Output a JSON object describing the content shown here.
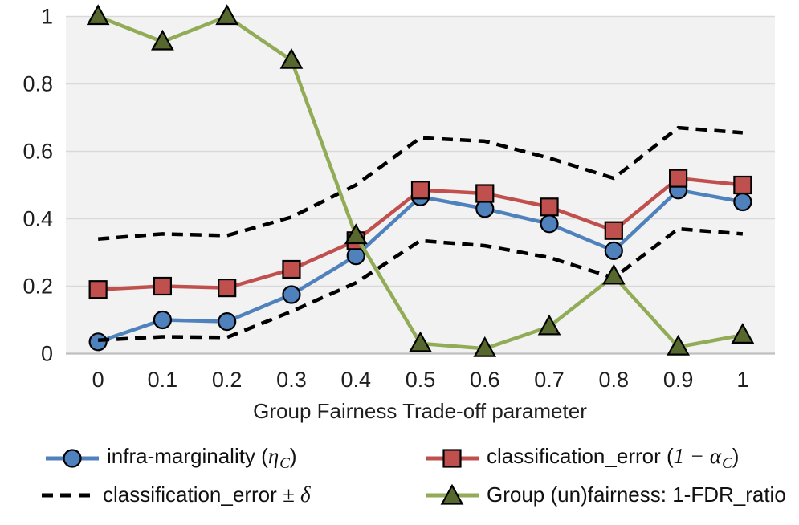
{
  "chart_data": {
    "type": "line",
    "title": "",
    "xlabel": "Group Fairness Trade-off parameter",
    "ylabel": "",
    "x": [
      0,
      0.1,
      0.2,
      0.3,
      0.4,
      0.5,
      0.6,
      0.7,
      0.8,
      0.9,
      1
    ],
    "x_tick_labels": [
      "0",
      "0.1",
      "0.2",
      "0.3",
      "0.4",
      "0.5",
      "0.6",
      "0.7",
      "0.8",
      "0.9",
      "1"
    ],
    "y_ticks": [
      0,
      0.2,
      0.4,
      0.6,
      0.8,
      1
    ],
    "y_tick_labels": [
      "0",
      "0.2",
      "0.4",
      "0.6",
      "0.8",
      "1"
    ],
    "ylim": [
      0,
      1
    ],
    "grid": "horizontal-only",
    "legend_position": "bottom",
    "plot_bg": "#F2F2F2",
    "gridline_color": "#D9D9D9",
    "axis_line_color": "#BFBFBF",
    "series": [
      {
        "id": "infra-marginality",
        "name": "infra-marginality (ηC)",
        "color": "#4F81BD",
        "marker": "circle",
        "marker_fill": "#4F81BD",
        "dash": false,
        "values": [
          0.035,
          0.1,
          0.095,
          0.175,
          0.29,
          0.465,
          0.43,
          0.385,
          0.305,
          0.485,
          0.45
        ]
      },
      {
        "id": "classification-error",
        "name": "classification_error (1 − αC)",
        "color": "#C0504D",
        "marker": "square",
        "marker_fill": "#C0504D",
        "dash": false,
        "values": [
          0.19,
          0.2,
          0.195,
          0.25,
          0.335,
          0.485,
          0.475,
          0.435,
          0.365,
          0.52,
          0.5
        ]
      },
      {
        "id": "classification-error-plus-delta",
        "name": "classification_error + δ",
        "color": "#000000",
        "marker": "none",
        "marker_fill": "none",
        "dash": true,
        "values": [
          0.34,
          0.355,
          0.35,
          0.405,
          0.5,
          0.64,
          0.63,
          0.58,
          0.52,
          0.67,
          0.655
        ]
      },
      {
        "id": "classification-error-minus-delta",
        "name": "classification_error − δ",
        "color": "#000000",
        "marker": "none",
        "marker_fill": "none",
        "dash": true,
        "values": [
          0.04,
          0.05,
          0.048,
          0.125,
          0.21,
          0.335,
          0.32,
          0.285,
          0.225,
          0.37,
          0.355
        ]
      },
      {
        "id": "group-unfairness",
        "name": "Group (un)fairness: 1-FDR_ratio",
        "color": "#92AB56",
        "marker": "triangle",
        "marker_fill": "#56682D",
        "dash": false,
        "values": [
          1.0,
          0.925,
          1.0,
          0.87,
          0.35,
          0.03,
          0.015,
          0.08,
          0.23,
          0.02,
          0.055
        ]
      }
    ],
    "legend": [
      {
        "name": "infra-marginality",
        "swatch": "circle",
        "color": "#4F81BD",
        "fill": "#4F81BD",
        "parts": [
          {
            "t": "infra-marginality ("
          },
          {
            "t": "η",
            "s": "m"
          },
          {
            "t": "C",
            "s": "ms"
          },
          {
            "t": ")"
          }
        ]
      },
      {
        "name": "classification-error",
        "swatch": "square",
        "color": "#C0504D",
        "fill": "#C0504D",
        "parts": [
          {
            "t": "classification_error ("
          },
          {
            "t": "1 − ",
            "s": "m"
          },
          {
            "t": "α",
            "s": "m"
          },
          {
            "t": "C",
            "s": "ms"
          },
          {
            "t": ")"
          }
        ]
      },
      {
        "name": "classification-error-delta-band",
        "swatch": "dash",
        "color": "#000000",
        "fill": "#000000",
        "parts": [
          {
            "t": "classification_error "
          },
          {
            "t": "±",
            "s": "m"
          },
          {
            "t": " "
          },
          {
            "t": "δ",
            "s": "m"
          }
        ]
      },
      {
        "name": "group-unfairness",
        "swatch": "triangle",
        "color": "#92AB56",
        "fill": "#56682D",
        "parts": [
          {
            "t": "Group (un)fairness: 1-FDR_ratio"
          }
        ]
      }
    ]
  }
}
